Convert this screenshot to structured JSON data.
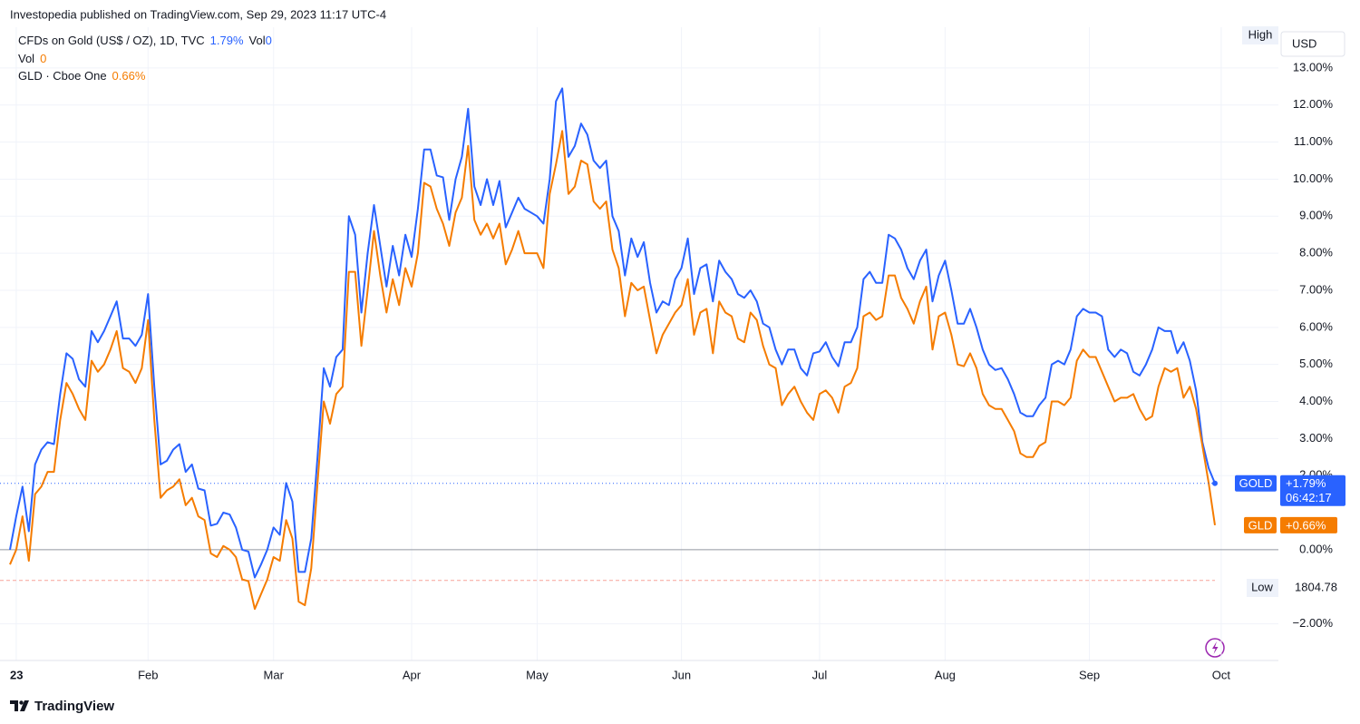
{
  "header": "Investopedia published on TradingView.com, Sep 29, 2023 11:17 UTC-4",
  "footer": "TradingView",
  "chart_data": {
    "type": "line",
    "categories": [
      null,
      "23",
      null,
      null,
      null,
      null,
      null,
      null,
      null,
      null,
      null,
      null,
      null,
      null,
      null,
      null,
      null,
      null,
      null,
      null,
      null,
      null,
      "Feb",
      null,
      null,
      null,
      null,
      null,
      null,
      null,
      null,
      null,
      null,
      null,
      null,
      null,
      null,
      null,
      null,
      null,
      null,
      null,
      "Mar",
      null,
      null,
      null,
      null,
      null,
      null,
      null,
      null,
      null,
      null,
      null,
      null,
      null,
      null,
      null,
      null,
      null,
      null,
      null,
      null,
      null,
      "Apr",
      null,
      null,
      null,
      null,
      null,
      null,
      null,
      null,
      null,
      null,
      null,
      null,
      null,
      null,
      null,
      null,
      null,
      null,
      null,
      "May",
      null,
      null,
      null,
      null,
      null,
      null,
      null,
      null,
      null,
      null,
      null,
      null,
      null,
      null,
      null,
      null,
      null,
      null,
      null,
      null,
      null,
      null,
      "Jun",
      null,
      null,
      null,
      null,
      null,
      null,
      null,
      null,
      null,
      null,
      null,
      null,
      null,
      null,
      null,
      null,
      null,
      null,
      null,
      null,
      null,
      "Jul",
      null,
      null,
      null,
      null,
      null,
      null,
      null,
      null,
      null,
      null,
      null,
      null,
      null,
      null,
      null,
      null,
      null,
      null,
      null,
      "Aug",
      null,
      null,
      null,
      null,
      null,
      null,
      null,
      null,
      null,
      null,
      null,
      null,
      null,
      null,
      null,
      null,
      null,
      null,
      null,
      null,
      null,
      null,
      "Sep",
      null,
      null,
      null,
      null,
      null,
      null,
      null,
      null,
      null,
      null,
      null,
      null,
      null,
      null,
      null,
      null,
      null,
      null,
      null,
      null,
      "Oct"
    ],
    "series": [
      {
        "name": "GOLD",
        "legend": "CFDs on Gold (US$ / OZ), 1D, TVC",
        "change_label": "1.79%",
        "last_label": "+1.79%",
        "countdown": "06:42:17",
        "color": "#2962ff",
        "values": [
          0.0,
          0.9,
          1.7,
          0.5,
          2.3,
          2.7,
          2.9,
          2.85,
          4.2,
          5.3,
          5.15,
          4.6,
          4.4,
          5.9,
          5.6,
          5.9,
          6.3,
          6.7,
          5.7,
          5.7,
          5.5,
          5.8,
          6.9,
          4.4,
          2.3,
          2.4,
          2.7,
          2.85,
          2.1,
          2.3,
          1.65,
          1.6,
          0.65,
          0.7,
          1.0,
          0.95,
          0.6,
          0.0,
          -0.05,
          -0.75,
          -0.4,
          0.0,
          0.6,
          0.4,
          1.8,
          1.3,
          -0.6,
          -0.6,
          0.3,
          2.5,
          4.9,
          4.4,
          5.2,
          5.4,
          9.0,
          8.5,
          6.4,
          8.0,
          9.3,
          8.2,
          7.1,
          8.2,
          7.4,
          8.5,
          7.9,
          9.2,
          10.8,
          10.8,
          10.1,
          10.05,
          8.9,
          10.0,
          10.6,
          11.9,
          9.8,
          9.3,
          10.0,
          9.3,
          9.95,
          8.7,
          9.1,
          9.5,
          9.2,
          9.1,
          9.0,
          8.8,
          10.0,
          12.1,
          12.45,
          10.6,
          10.9,
          11.5,
          11.2,
          10.5,
          10.3,
          10.5,
          9.0,
          8.6,
          7.4,
          8.4,
          7.9,
          8.3,
          7.2,
          6.4,
          6.7,
          6.6,
          7.3,
          7.6,
          8.4,
          6.9,
          7.6,
          7.7,
          6.7,
          7.8,
          7.5,
          7.3,
          6.9,
          6.8,
          7.0,
          6.7,
          6.1,
          6.0,
          5.4,
          5.0,
          5.4,
          5.4,
          4.9,
          4.7,
          5.3,
          5.35,
          5.6,
          5.2,
          4.95,
          5.6,
          5.6,
          6.0,
          7.3,
          7.5,
          7.2,
          7.2,
          8.5,
          8.4,
          8.1,
          7.6,
          7.3,
          7.8,
          8.1,
          6.7,
          7.4,
          7.8,
          7.0,
          6.1,
          6.1,
          6.5,
          6.0,
          5.4,
          5.0,
          4.85,
          4.9,
          4.6,
          4.2,
          3.7,
          3.6,
          3.6,
          3.9,
          4.1,
          5.0,
          5.1,
          5.0,
          5.4,
          6.3,
          6.5,
          6.4,
          6.4,
          6.3,
          5.4,
          5.2,
          5.4,
          5.3,
          4.8,
          4.7,
          5.0,
          5.4,
          6.0,
          5.9,
          5.9,
          5.3,
          5.6,
          5.1,
          4.3,
          2.9,
          2.2,
          1.79,
          null
        ]
      },
      {
        "name": "GLD",
        "legend": "GLD · Cboe One",
        "change_label": "0.66%",
        "last_label": "+0.66%",
        "color": "#f57c00",
        "values": [
          -0.4,
          0.0,
          0.9,
          -0.3,
          1.5,
          1.7,
          2.1,
          2.1,
          3.5,
          4.5,
          4.2,
          3.8,
          3.5,
          5.1,
          4.8,
          5.0,
          5.4,
          5.9,
          4.9,
          4.8,
          4.5,
          4.9,
          6.2,
          3.5,
          1.4,
          1.6,
          1.7,
          1.9,
          1.2,
          1.4,
          0.9,
          0.8,
          -0.1,
          -0.2,
          0.1,
          0.0,
          -0.2,
          -0.8,
          -0.85,
          -1.6,
          -1.2,
          -0.8,
          -0.2,
          -0.3,
          0.8,
          0.3,
          -1.4,
          -1.5,
          -0.5,
          1.8,
          4.0,
          3.4,
          4.2,
          4.4,
          7.5,
          7.5,
          5.5,
          7.0,
          8.6,
          7.4,
          6.4,
          7.3,
          6.6,
          7.6,
          7.1,
          8.0,
          9.9,
          9.8,
          9.2,
          8.8,
          8.2,
          9.1,
          9.5,
          10.9,
          8.9,
          8.5,
          8.8,
          8.4,
          8.8,
          7.7,
          8.1,
          8.6,
          8.0,
          8.0,
          8.0,
          7.6,
          9.6,
          10.4,
          11.3,
          9.6,
          9.8,
          10.5,
          10.4,
          9.4,
          9.2,
          9.4,
          8.1,
          7.6,
          6.3,
          7.2,
          7.0,
          7.1,
          6.2,
          5.3,
          5.8,
          6.1,
          6.4,
          6.6,
          7.3,
          5.8,
          6.4,
          6.5,
          5.3,
          6.7,
          6.4,
          6.3,
          5.7,
          5.6,
          6.4,
          6.2,
          5.5,
          5.0,
          4.9,
          3.9,
          4.2,
          4.4,
          4.0,
          3.7,
          3.5,
          4.2,
          4.3,
          4.1,
          3.7,
          4.4,
          4.5,
          4.9,
          6.3,
          6.4,
          6.2,
          6.3,
          7.4,
          7.4,
          6.8,
          6.5,
          6.1,
          6.7,
          7.1,
          5.4,
          6.3,
          6.4,
          5.8,
          5.0,
          4.95,
          5.3,
          4.9,
          4.2,
          3.9,
          3.8,
          3.8,
          3.5,
          3.2,
          2.6,
          2.5,
          2.5,
          2.8,
          2.9,
          4.0,
          4.0,
          3.9,
          4.1,
          5.1,
          5.4,
          5.2,
          5.2,
          4.8,
          4.4,
          4.0,
          4.1,
          4.1,
          4.2,
          3.8,
          3.5,
          3.6,
          4.4,
          4.9,
          4.8,
          4.9,
          4.1,
          4.4,
          3.8,
          2.8,
          1.8,
          0.66,
          null
        ]
      }
    ],
    "volume": {
      "label": "Vol",
      "value": 0
    },
    "currency": "USD",
    "high_label": "High",
    "low": {
      "label": "Low",
      "price": 1804.78,
      "value": -0.83
    },
    "ylim": [
      -2.99,
      14.1
    ],
    "yticks": [
      {
        "value": -2,
        "label": "−2.00%"
      },
      {
        "value": 0,
        "label": "0.00%"
      },
      {
        "value": 2,
        "label": "2.00%"
      },
      {
        "value": 3,
        "label": "3.00%"
      },
      {
        "value": 4,
        "label": "4.00%"
      },
      {
        "value": 5,
        "label": "5.00%"
      },
      {
        "value": 6,
        "label": "6.00%"
      },
      {
        "value": 7,
        "label": "7.00%"
      },
      {
        "value": 8,
        "label": "8.00%"
      },
      {
        "value": 9,
        "label": "9.00%"
      },
      {
        "value": 10,
        "label": "10.00%"
      },
      {
        "value": 11,
        "label": "11.00%"
      },
      {
        "value": 12,
        "label": "12.00%"
      },
      {
        "value": 13,
        "label": "13.00%"
      }
    ],
    "grid": true
  }
}
